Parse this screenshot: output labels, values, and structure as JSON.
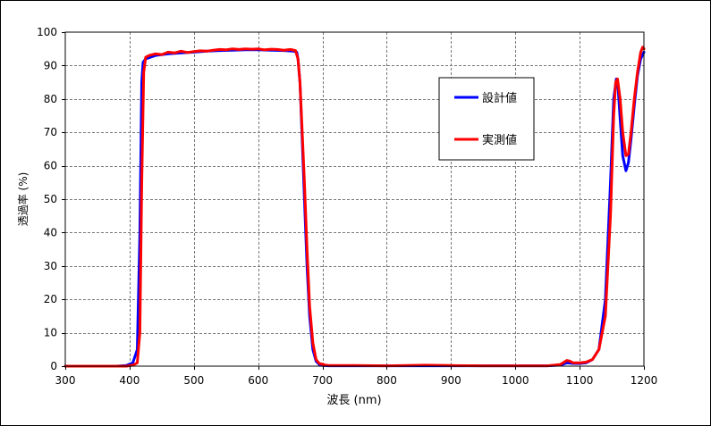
{
  "chart_data": {
    "type": "line",
    "title": "",
    "xlabel": "波長 (nm)",
    "ylabel": "透過率 (%)",
    "xlim": [
      300,
      1200
    ],
    "ylim": [
      0,
      100
    ],
    "xticks": [
      300,
      400,
      500,
      600,
      700,
      800,
      900,
      1000,
      1100,
      1200
    ],
    "yticks": [
      0,
      10,
      20,
      30,
      40,
      50,
      60,
      70,
      80,
      90,
      100
    ],
    "grid": "dashed",
    "legend_position": "upper-right inside plot",
    "series": [
      {
        "name": "設計値",
        "color": "#0000ff",
        "x": [
          300,
          380,
          395,
          405,
          412,
          416,
          419,
          421,
          425,
          440,
          460,
          480,
          500,
          520,
          540,
          560,
          580,
          600,
          620,
          640,
          655,
          660,
          662,
          665,
          668,
          672,
          676,
          680,
          685,
          690,
          695,
          700,
          710,
          750,
          800,
          850,
          900,
          950,
          1000,
          1050,
          1070,
          1080,
          1090,
          1100,
          1110,
          1120,
          1130,
          1140,
          1148,
          1153,
          1157,
          1160,
          1163,
          1167,
          1172,
          1176,
          1180,
          1185,
          1190,
          1195,
          1200
        ],
        "y": [
          0,
          0,
          0.2,
          1,
          5,
          40,
          85,
          91,
          92,
          93,
          93.5,
          93.8,
          94,
          94.3,
          94.5,
          94.6,
          94.7,
          94.7,
          94.6,
          94.5,
          94.3,
          94,
          92,
          85,
          70,
          50,
          30,
          15,
          5,
          1.5,
          0.5,
          0.2,
          0.1,
          0.1,
          0.1,
          0.1,
          0.1,
          0.1,
          0.1,
          0.1,
          0.3,
          1,
          0.8,
          0.8,
          1,
          2,
          5,
          20,
          55,
          80,
          86,
          83,
          74,
          63,
          58.5,
          61,
          68,
          78,
          87,
          92,
          94
        ]
      },
      {
        "name": "実測値",
        "color": "#ff0000",
        "x": [
          300,
          380,
          395,
          405,
          412,
          416,
          419,
          422,
          425,
          430,
          440,
          450,
          460,
          470,
          480,
          490,
          500,
          510,
          520,
          530,
          540,
          550,
          560,
          570,
          580,
          590,
          600,
          610,
          620,
          630,
          640,
          650,
          658,
          662,
          665,
          668,
          672,
          676,
          680,
          685,
          690,
          695,
          700,
          705,
          710,
          750,
          800,
          860,
          900,
          950,
          1000,
          1050,
          1070,
          1080,
          1085,
          1090,
          1100,
          1110,
          1120,
          1130,
          1140,
          1148,
          1153,
          1156,
          1159,
          1163,
          1167,
          1172,
          1176,
          1180,
          1185,
          1190,
          1195,
          1198,
          1200
        ],
        "y": [
          0,
          0,
          0,
          0.3,
          1,
          10,
          55,
          88,
          92.5,
          93,
          93.5,
          93.3,
          94,
          93.8,
          94.3,
          93.9,
          94.2,
          94.4,
          94.3,
          94.6,
          94.8,
          94.7,
          95,
          94.8,
          95,
          94.9,
          95,
          94.7,
          94.9,
          94.8,
          94.6,
          94.8,
          94.5,
          92,
          85,
          72,
          55,
          35,
          18,
          7,
          2,
          0.8,
          0.6,
          0.3,
          0.2,
          0.2,
          0.1,
          0.3,
          0.2,
          0.1,
          0.1,
          0.1,
          0.5,
          1.7,
          1.5,
          1,
          1,
          1.2,
          2,
          5,
          15,
          45,
          75,
          85,
          86,
          80,
          70,
          63,
          63.5,
          70,
          80,
          88,
          94,
          95.5,
          95
        ]
      }
    ]
  }
}
